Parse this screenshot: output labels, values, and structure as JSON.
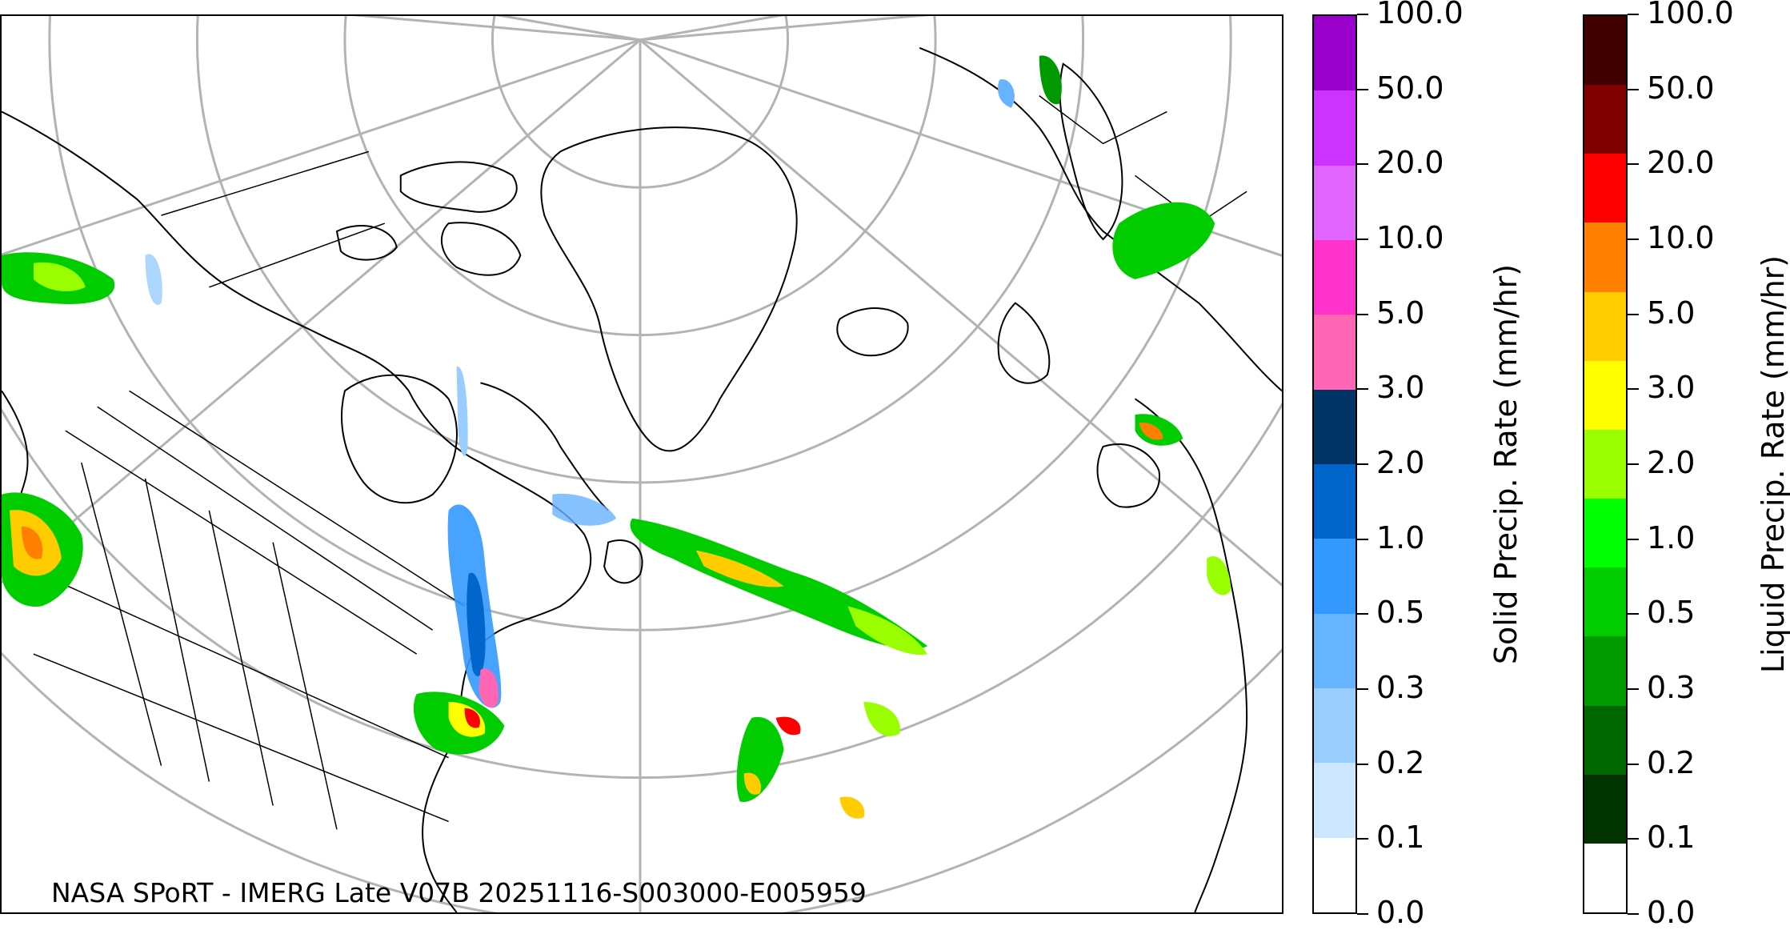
{
  "caption": "NASA SPoRT - IMERG Late V07B 20251116-S003000-E005959",
  "colorbars": {
    "solid": {
      "label": "Solid Precip. Rate (mm/hr)",
      "ticks": [
        "0.0",
        "0.1",
        "0.2",
        "0.3",
        "0.5",
        "1.0",
        "2.0",
        "3.0",
        "5.0",
        "10.0",
        "20.0",
        "50.0",
        "100.0"
      ],
      "colors": [
        "#ffffff",
        "#cce6ff",
        "#99ccff",
        "#66b3ff",
        "#3399ff",
        "#0066cc",
        "#003366",
        "#ff66b3",
        "#ff33cc",
        "#e066ff",
        "#cc33ff",
        "#9900cc"
      ]
    },
    "liquid": {
      "label": "Liquid Precip. Rate (mm/hr)",
      "ticks": [
        "0.0",
        "0.1",
        "0.2",
        "0.3",
        "0.5",
        "1.0",
        "2.0",
        "3.0",
        "5.0",
        "10.0",
        "20.0",
        "50.0",
        "100.0"
      ],
      "colors": [
        "#ffffff",
        "#003300",
        "#006600",
        "#009900",
        "#00cc00",
        "#00ff00",
        "#99ff00",
        "#ffff00",
        "#ffcc00",
        "#ff8000",
        "#ff0000",
        "#800000",
        "#400000"
      ]
    }
  }
}
